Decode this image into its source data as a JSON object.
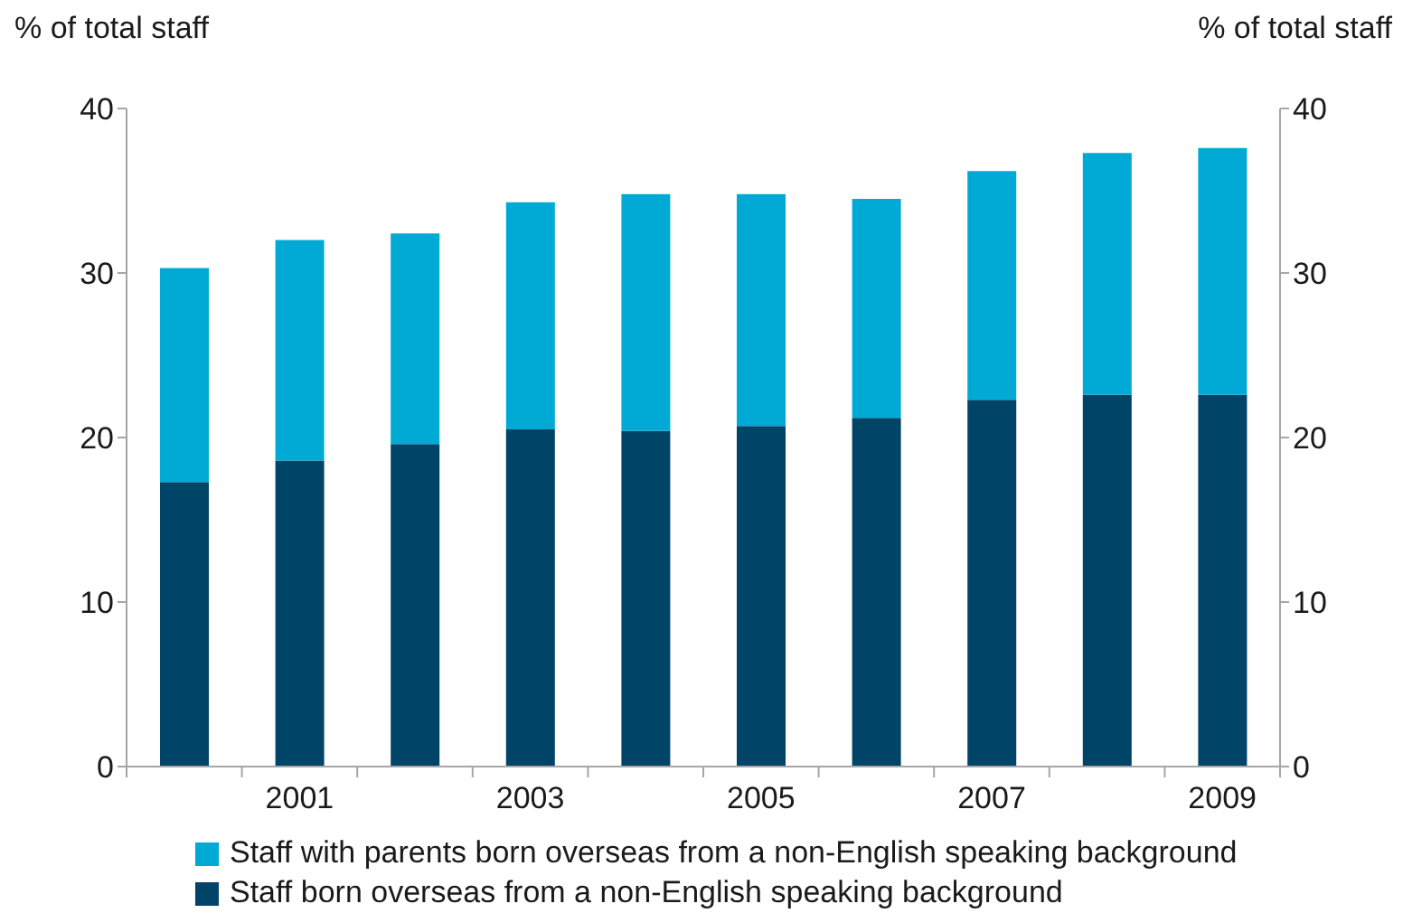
{
  "chart_data": {
    "type": "bar",
    "stacked": true,
    "categories": [
      null,
      "2001",
      null,
      "2003",
      null,
      "2005",
      null,
      "2007",
      null,
      "2009"
    ],
    "series": [
      {
        "name": "Staff born overseas from a non-English speaking background",
        "color": "#004468",
        "values": [
          17.3,
          18.6,
          19.6,
          20.5,
          20.4,
          20.7,
          21.2,
          22.3,
          22.6,
          22.6
        ]
      },
      {
        "name": "Staff with parents born overseas from a non-English speaking background",
        "color": "#00aad4",
        "values": [
          13.0,
          13.4,
          12.8,
          13.8,
          14.4,
          14.1,
          13.3,
          13.9,
          14.7,
          15.0
        ]
      }
    ],
    "ylabel": "% of total staff",
    "y2label": "% of total staff",
    "ylim": [
      0,
      40
    ],
    "yticks": [
      0,
      10,
      20,
      30,
      40
    ],
    "y2lim": [
      0,
      40
    ],
    "y2ticks": [
      0,
      10,
      20,
      30,
      40
    ],
    "legend": "bottom"
  }
}
